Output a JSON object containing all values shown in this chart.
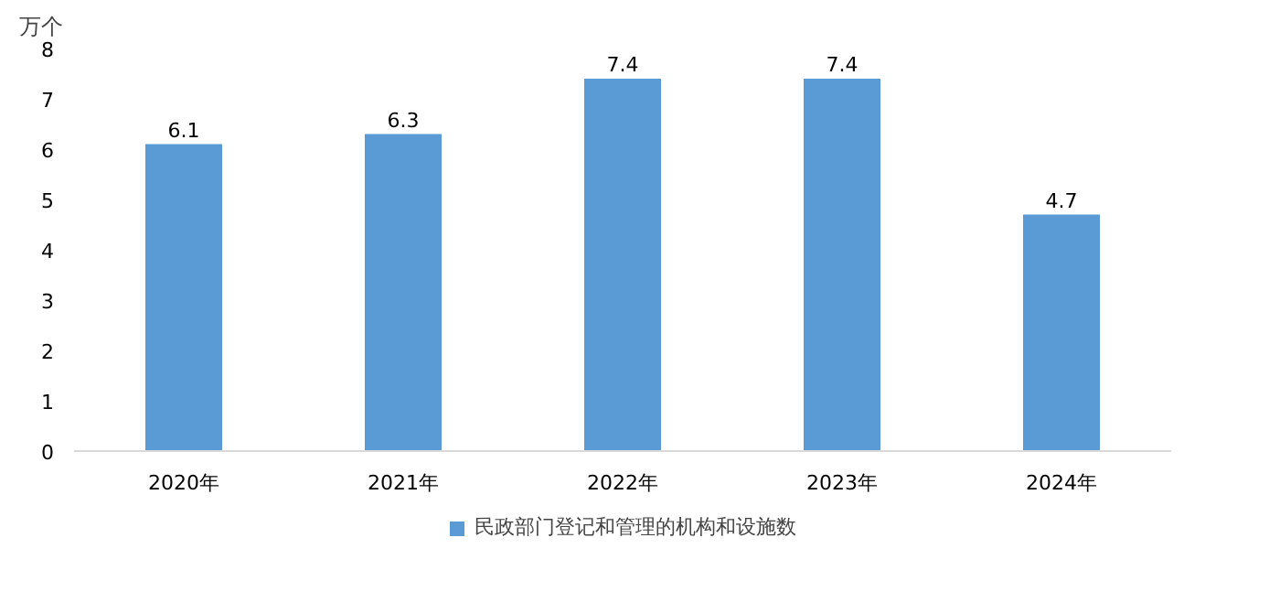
{
  "chart_data": {
    "type": "bar",
    "ylabel": "万个",
    "categories": [
      "2020年",
      "2021年",
      "2022年",
      "2023年",
      "2024年"
    ],
    "series": [
      {
        "name": "民政部门登记和管理的机构和设施数",
        "color": "#5b9bd5",
        "values": [
          6.1,
          6.3,
          7.4,
          7.4,
          4.7
        ]
      }
    ],
    "ylim": [
      0,
      8
    ],
    "yticks": [
      0,
      1,
      2,
      3,
      4,
      5,
      6,
      7,
      8
    ],
    "data_labels": true,
    "legend": "bottom",
    "grid": false
  }
}
